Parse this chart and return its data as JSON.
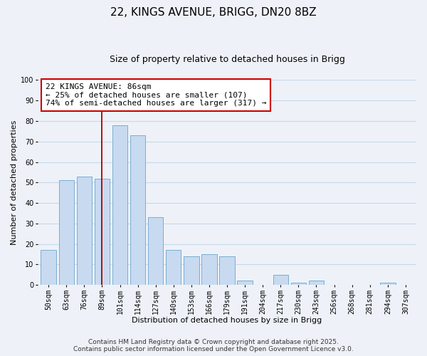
{
  "title": "22, KINGS AVENUE, BRIGG, DN20 8BZ",
  "subtitle": "Size of property relative to detached houses in Brigg",
  "xlabel": "Distribution of detached houses by size in Brigg",
  "ylabel": "Number of detached properties",
  "categories": [
    "50sqm",
    "63sqm",
    "76sqm",
    "89sqm",
    "101sqm",
    "114sqm",
    "127sqm",
    "140sqm",
    "153sqm",
    "166sqm",
    "179sqm",
    "191sqm",
    "204sqm",
    "217sqm",
    "230sqm",
    "243sqm",
    "256sqm",
    "268sqm",
    "281sqm",
    "294sqm",
    "307sqm"
  ],
  "values": [
    17,
    51,
    53,
    52,
    78,
    73,
    33,
    17,
    14,
    15,
    14,
    2,
    0,
    5,
    1,
    2,
    0,
    0,
    0,
    1,
    0
  ],
  "bar_color": "#c8daf0",
  "bar_edge_color": "#7aaed4",
  "grid_color": "#c8d8e8",
  "background_color": "#eef2f8",
  "plot_bg_color": "#eef2f8",
  "vline_x_index": 3,
  "vline_color": "#aa0000",
  "annotation_text": "22 KINGS AVENUE: 86sqm\n← 25% of detached houses are smaller (107)\n74% of semi-detached houses are larger (317) →",
  "annotation_box_color": "#ffffff",
  "annotation_box_edge": "#cc0000",
  "ylim": [
    0,
    100
  ],
  "yticks": [
    0,
    10,
    20,
    30,
    40,
    50,
    60,
    70,
    80,
    90,
    100
  ],
  "footer_line1": "Contains HM Land Registry data © Crown copyright and database right 2025.",
  "footer_line2": "Contains public sector information licensed under the Open Government Licence v3.0.",
  "title_fontsize": 11,
  "subtitle_fontsize": 9,
  "annotation_fontsize": 8,
  "tick_fontsize": 7,
  "axis_label_fontsize": 8,
  "footer_fontsize": 6.5
}
